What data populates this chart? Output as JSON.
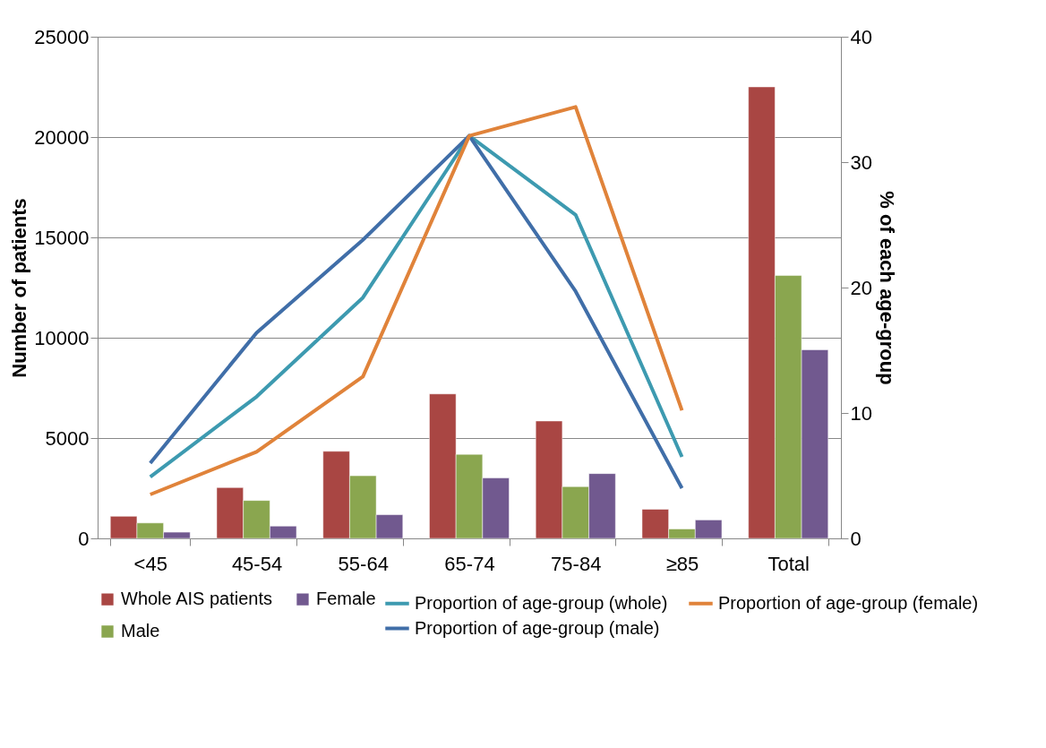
{
  "chart_data": {
    "type": "bar",
    "ylabel": "Number of patients",
    "y2label": "% of each age-group",
    "categories": [
      "<45",
      "45-54",
      "55-64",
      "65-74",
      "75-84",
      "≥85",
      "Total"
    ],
    "series": [
      {
        "name": "Whole AIS patients",
        "color": "#a94643",
        "values": [
          1100,
          2530,
          4340,
          7200,
          5850,
          1450,
          22500
        ]
      },
      {
        "name": "Male",
        "color": "#8aa64f",
        "values": [
          770,
          1890,
          3120,
          4190,
          2580,
          470,
          13100
        ]
      },
      {
        "name": "Female",
        "color": "#71598f",
        "values": [
          310,
          610,
          1180,
          3010,
          3230,
          920,
          9400
        ]
      },
      {
        "name": "Proportion of age-group (whole)",
        "type": "line",
        "axis": "y2",
        "color": "#3d9ab0",
        "values": [
          4.9,
          11.3,
          19.2,
          32.1,
          25.8,
          6.5,
          null
        ]
      },
      {
        "name": "Proportion of age-group (male)",
        "type": "line",
        "axis": "y2",
        "color": "#406ea8",
        "values": [
          6.0,
          16.4,
          23.8,
          32.1,
          19.7,
          4.0,
          null
        ]
      },
      {
        "name": "Proportion of age-group (female)",
        "type": "line",
        "axis": "y2",
        "color": "#e0833a",
        "values": [
          3.5,
          6.9,
          12.9,
          32.1,
          34.4,
          10.2,
          null
        ]
      }
    ],
    "ylim": [
      0,
      25000
    ],
    "yticks": [
      0,
      5000,
      10000,
      15000,
      20000,
      25000
    ],
    "y2lim": [
      0,
      40
    ],
    "y2ticks": [
      0,
      10,
      20,
      30,
      40
    ],
    "grid": "y",
    "legend": "bottom",
    "marker": "none",
    "line_style": "solid"
  }
}
